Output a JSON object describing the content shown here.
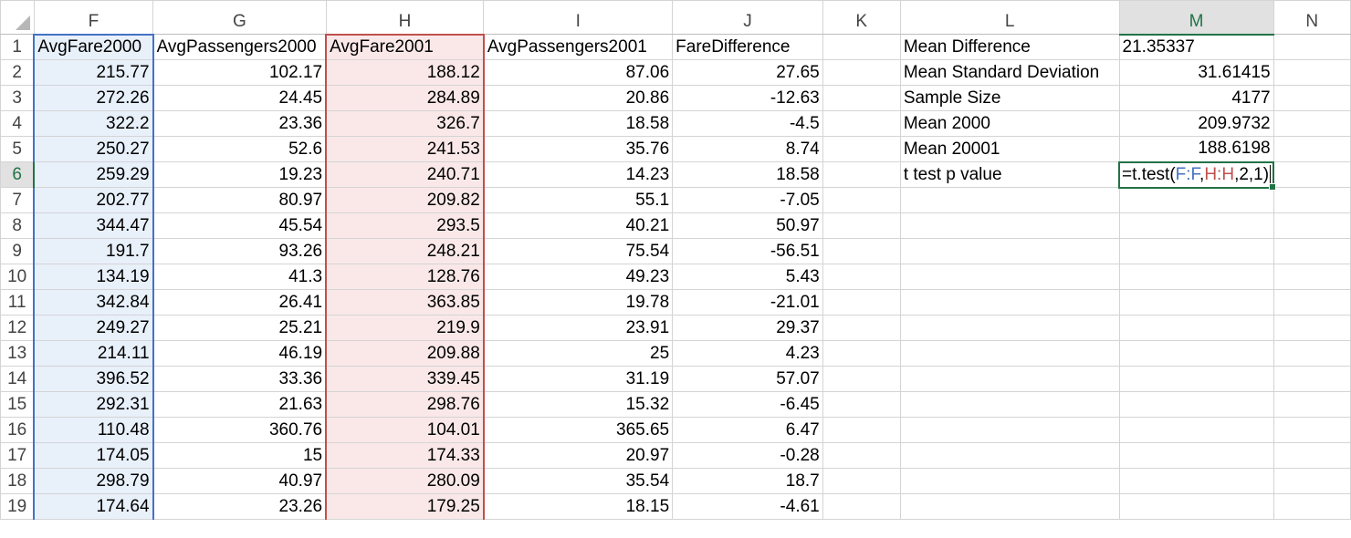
{
  "columns": [
    "F",
    "G",
    "H",
    "I",
    "J",
    "K",
    "L",
    "M",
    "N"
  ],
  "rows": [
    {
      "n": "1",
      "F": "AvgFare2000",
      "G": "AvgPassengers2000",
      "H": "AvgFare2001",
      "I": "AvgPassengers2001",
      "J": "FareDifference",
      "L": "Mean Difference",
      "M": "21.35337"
    },
    {
      "n": "2",
      "F": "215.77",
      "G": "102.17",
      "H": "188.12",
      "I": "87.06",
      "J": "27.65",
      "L": "Mean Standard Deviation",
      "M": "31.61415"
    },
    {
      "n": "3",
      "F": "272.26",
      "G": "24.45",
      "H": "284.89",
      "I": "20.86",
      "J": "-12.63",
      "L": "Sample Size",
      "M": "4177"
    },
    {
      "n": "4",
      "F": "322.2",
      "G": "23.36",
      "H": "326.7",
      "I": "18.58",
      "J": "-4.5",
      "L": "Mean 2000",
      "M": "209.9732"
    },
    {
      "n": "5",
      "F": "250.27",
      "G": "52.6",
      "H": "241.53",
      "I": "35.76",
      "J": "8.74",
      "L": "Mean 20001",
      "M": "188.6198"
    },
    {
      "n": "6",
      "F": "259.29",
      "G": "19.23",
      "H": "240.71",
      "I": "14.23",
      "J": "18.58",
      "L": "t test p value",
      "M": ""
    },
    {
      "n": "7",
      "F": "202.77",
      "G": "80.97",
      "H": "209.82",
      "I": "55.1",
      "J": "-7.05"
    },
    {
      "n": "8",
      "F": "344.47",
      "G": "45.54",
      "H": "293.5",
      "I": "40.21",
      "J": "50.97"
    },
    {
      "n": "9",
      "F": "191.7",
      "G": "93.26",
      "H": "248.21",
      "I": "75.54",
      "J": "-56.51"
    },
    {
      "n": "10",
      "F": "134.19",
      "G": "41.3",
      "H": "128.76",
      "I": "49.23",
      "J": "5.43"
    },
    {
      "n": "11",
      "F": "342.84",
      "G": "26.41",
      "H": "363.85",
      "I": "19.78",
      "J": "-21.01"
    },
    {
      "n": "12",
      "F": "249.27",
      "G": "25.21",
      "H": "219.9",
      "I": "23.91",
      "J": "29.37"
    },
    {
      "n": "13",
      "F": "214.11",
      "G": "46.19",
      "H": "209.88",
      "I": "25",
      "J": "4.23"
    },
    {
      "n": "14",
      "F": "396.52",
      "G": "33.36",
      "H": "339.45",
      "I": "31.19",
      "J": "57.07"
    },
    {
      "n": "15",
      "F": "292.31",
      "G": "21.63",
      "H": "298.76",
      "I": "15.32",
      "J": "-6.45"
    },
    {
      "n": "16",
      "F": "110.48",
      "G": "360.76",
      "H": "104.01",
      "I": "365.65",
      "J": "6.47"
    },
    {
      "n": "17",
      "F": "174.05",
      "G": "15",
      "H": "174.33",
      "I": "20.97",
      "J": "-0.28"
    },
    {
      "n": "18",
      "F": "298.79",
      "G": "40.97",
      "H": "280.09",
      "I": "35.54",
      "J": "18.7"
    },
    {
      "n": "19",
      "F": "174.64",
      "G": "23.26",
      "H": "179.25",
      "I": "18.15",
      "J": "-4.61"
    }
  ],
  "formula": {
    "prefix": "=t.test(",
    "ref1": "F:F",
    "sep1": ",",
    "ref2": "H:H",
    "suffix": ",2,1)"
  },
  "colors": {
    "accent_green": "#217346",
    "ref_blue": "#4472c4",
    "ref_red": "#c0504d"
  }
}
